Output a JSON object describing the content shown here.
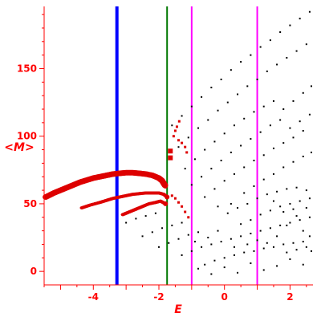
{
  "chart_data": {
    "type": "scatter",
    "title": "",
    "xlabel": "E",
    "ylabel": "<M>",
    "xlim": [
      -5.5,
      2.7
    ],
    "ylim": [
      -10,
      196
    ],
    "xticks": [
      "-4",
      "-2",
      "0",
      "2"
    ],
    "yticks": [
      "0",
      "50",
      "100",
      "150"
    ],
    "grid": false,
    "colors": {
      "axes": "#ff0000",
      "red_markers": "#dd0000",
      "black_markers": "#000000",
      "blue_line": "#0000ff",
      "green_line": "#007700",
      "magenta_line": "#ff00ff"
    },
    "vertical_lines": [
      {
        "x": -3.28,
        "color": "blue_line",
        "width": 4
      },
      {
        "x": -1.75,
        "color": "green_line",
        "width": 2
      },
      {
        "x": -1.0,
        "color": "magenta_line",
        "width": 2
      },
      {
        "x": 1.0,
        "color": "magenta_line",
        "width": 2
      }
    ],
    "series": [
      {
        "color": "red_markers",
        "style": "band",
        "points": [
          [
            -5.45,
            55
          ],
          [
            -5.2,
            58
          ],
          [
            -5.0,
            60
          ],
          [
            -4.8,
            62
          ],
          [
            -4.6,
            64
          ],
          [
            -4.4,
            66
          ],
          [
            -4.2,
            67.5
          ],
          [
            -4.0,
            69
          ],
          [
            -3.8,
            70
          ],
          [
            -3.6,
            71
          ],
          [
            -3.4,
            72
          ],
          [
            -3.2,
            72.5
          ],
          [
            -3.0,
            73
          ],
          [
            -2.8,
            73
          ],
          [
            -2.6,
            72.5
          ],
          [
            -2.4,
            72
          ],
          [
            -2.2,
            71
          ],
          [
            -2.0,
            69
          ],
          [
            -1.9,
            67
          ],
          [
            -1.8,
            63
          ]
        ]
      },
      {
        "color": "red_markers",
        "style": "band",
        "points": [
          [
            -4.35,
            47
          ],
          [
            -4.1,
            49
          ],
          [
            -3.8,
            51
          ],
          [
            -3.6,
            52.5
          ],
          [
            -3.4,
            54
          ],
          [
            -3.2,
            55
          ],
          [
            -3.0,
            56
          ],
          [
            -2.8,
            57
          ],
          [
            -2.6,
            57.5
          ],
          [
            -2.4,
            58
          ],
          [
            -2.2,
            58
          ],
          [
            -2.0,
            58
          ],
          [
            -1.85,
            57
          ],
          [
            -1.75,
            55
          ]
        ]
      },
      {
        "color": "red_markers",
        "style": "band",
        "points": [
          [
            -3.1,
            42
          ],
          [
            -2.9,
            44
          ],
          [
            -2.7,
            46
          ],
          [
            -2.5,
            48
          ],
          [
            -2.3,
            50
          ],
          [
            -2.1,
            51
          ],
          [
            -1.95,
            52
          ],
          [
            -1.8,
            50
          ]
        ]
      },
      {
        "color": "red_markers",
        "style": "big",
        "points": [
          [
            -1.65,
            84
          ],
          [
            -1.65,
            89
          ]
        ]
      },
      {
        "color": "red_markers",
        "style": "small",
        "points": [
          [
            -1.55,
            100
          ],
          [
            -1.5,
            104
          ],
          [
            -1.45,
            107
          ],
          [
            -1.38,
            111
          ],
          [
            -1.4,
            97
          ],
          [
            -1.3,
            95
          ],
          [
            -1.2,
            92
          ],
          [
            -1.15,
            88
          ],
          [
            -1.6,
            56
          ],
          [
            -1.5,
            54
          ],
          [
            -1.4,
            51
          ],
          [
            -1.3,
            48
          ],
          [
            -1.2,
            44
          ],
          [
            -1.1,
            40
          ]
        ]
      },
      {
        "color": "black_markers",
        "style": "dots",
        "points": [
          [
            -1.6,
            108
          ],
          [
            -1.3,
            115
          ],
          [
            -1.0,
            122
          ],
          [
            -0.7,
            129
          ],
          [
            -0.4,
            136
          ],
          [
            -0.1,
            142
          ],
          [
            0.2,
            149
          ],
          [
            0.5,
            155
          ],
          [
            0.8,
            160
          ],
          [
            1.1,
            166
          ],
          [
            1.4,
            171
          ],
          [
            1.7,
            177
          ],
          [
            2.0,
            182
          ],
          [
            2.3,
            187
          ],
          [
            2.6,
            192
          ],
          [
            -1.4,
            92
          ],
          [
            -1.1,
            99
          ],
          [
            -0.8,
            106
          ],
          [
            -0.5,
            112
          ],
          [
            -0.2,
            119
          ],
          [
            0.1,
            125
          ],
          [
            0.4,
            131
          ],
          [
            0.7,
            137
          ],
          [
            1.0,
            142
          ],
          [
            1.3,
            148
          ],
          [
            1.6,
            153
          ],
          [
            1.9,
            158
          ],
          [
            2.2,
            163
          ],
          [
            2.5,
            168
          ],
          [
            -1.2,
            76
          ],
          [
            -0.9,
            83
          ],
          [
            -0.6,
            90
          ],
          [
            -0.3,
            96
          ],
          [
            0.0,
            102
          ],
          [
            0.3,
            108
          ],
          [
            0.6,
            113
          ],
          [
            0.9,
            118
          ],
          [
            1.2,
            122
          ],
          [
            1.5,
            126
          ],
          [
            1.8,
            120
          ],
          [
            2.1,
            126
          ],
          [
            2.4,
            132
          ],
          [
            2.65,
            137
          ],
          [
            -1.0,
            64
          ],
          [
            -0.7,
            70
          ],
          [
            -0.4,
            76
          ],
          [
            -0.1,
            82
          ],
          [
            0.2,
            88
          ],
          [
            0.5,
            93
          ],
          [
            0.8,
            98
          ],
          [
            1.1,
            103
          ],
          [
            1.4,
            108
          ],
          [
            1.7,
            112
          ],
          [
            2.0,
            106
          ],
          [
            2.3,
            111
          ],
          [
            2.6,
            116
          ],
          [
            -0.6,
            55
          ],
          [
            -0.3,
            61
          ],
          [
            0.0,
            67
          ],
          [
            0.3,
            72
          ],
          [
            0.6,
            77
          ],
          [
            0.9,
            82
          ],
          [
            1.2,
            86
          ],
          [
            1.5,
            91
          ],
          [
            1.8,
            95
          ],
          [
            2.1,
            99
          ],
          [
            2.4,
            104
          ],
          [
            0.6,
            58
          ],
          [
            0.9,
            63
          ],
          [
            1.2,
            68
          ],
          [
            1.5,
            72
          ],
          [
            1.8,
            77
          ],
          [
            2.1,
            81
          ],
          [
            2.4,
            85
          ],
          [
            2.65,
            88
          ],
          [
            -3.0,
            36
          ],
          [
            -2.7,
            39
          ],
          [
            -2.4,
            41
          ],
          [
            -2.1,
            43
          ],
          [
            -2.5,
            26
          ],
          [
            -2.2,
            29
          ],
          [
            -1.9,
            32
          ],
          [
            -1.6,
            34
          ],
          [
            -1.3,
            36
          ],
          [
            -2.0,
            18
          ],
          [
            -1.7,
            21
          ],
          [
            -1.4,
            24
          ],
          [
            -1.1,
            27
          ],
          [
            -0.8,
            29
          ],
          [
            -1.3,
            12
          ],
          [
            -1.0,
            15
          ],
          [
            -0.7,
            18
          ],
          [
            -0.4,
            20
          ],
          [
            -0.1,
            22
          ],
          [
            0.2,
            24
          ],
          [
            0.5,
            26
          ],
          [
            0.8,
            28
          ],
          [
            1.1,
            30
          ],
          [
            1.4,
            32
          ],
          [
            1.7,
            34
          ],
          [
            2.0,
            36
          ],
          [
            2.3,
            38
          ],
          [
            2.6,
            40
          ],
          [
            -0.6,
            5
          ],
          [
            -0.3,
            8
          ],
          [
            0.0,
            10
          ],
          [
            0.3,
            12
          ],
          [
            0.6,
            14
          ],
          [
            0.9,
            15
          ],
          [
            1.2,
            17
          ],
          [
            1.5,
            18
          ],
          [
            1.8,
            20
          ],
          [
            2.1,
            21
          ],
          [
            2.4,
            22
          ],
          [
            0.1,
            43
          ],
          [
            0.4,
            47
          ],
          [
            0.7,
            50
          ],
          [
            1.0,
            54
          ],
          [
            1.3,
            57
          ],
          [
            1.6,
            59
          ],
          [
            1.9,
            61
          ],
          [
            2.2,
            62
          ],
          [
            2.5,
            60
          ],
          [
            0.5,
            35
          ],
          [
            0.8,
            38
          ],
          [
            1.1,
            42
          ],
          [
            1.4,
            45
          ],
          [
            1.7,
            48
          ],
          [
            2.0,
            50
          ],
          [
            2.3,
            52
          ],
          [
            2.6,
            54
          ],
          [
            -0.9,
            22
          ],
          [
            -0.5,
            25
          ],
          [
            -0.2,
            30
          ],
          [
            0.3,
            18
          ],
          [
            0.7,
            20
          ],
          [
            1.0,
            23
          ],
          [
            1.3,
            21
          ],
          [
            1.6,
            26
          ],
          [
            1.9,
            14
          ],
          [
            2.2,
            16
          ],
          [
            2.5,
            18
          ],
          [
            2.65,
            15
          ],
          [
            -0.8,
            2
          ],
          [
            -0.4,
            -2
          ],
          [
            0.0,
            3
          ],
          [
            0.4,
            -1
          ],
          [
            0.8,
            6
          ],
          [
            1.2,
            1
          ],
          [
            1.6,
            4
          ],
          [
            2.0,
            9
          ],
          [
            2.4,
            5
          ],
          [
            1.8,
            44
          ],
          [
            2.1,
            46
          ],
          [
            2.4,
            30
          ],
          [
            2.6,
            26
          ],
          [
            0.2,
            50
          ],
          [
            -0.2,
            48
          ],
          [
            1.5,
            52
          ],
          [
            1.9,
            34
          ],
          [
            2.2,
            41
          ],
          [
            2.5,
            47
          ]
        ]
      }
    ]
  }
}
